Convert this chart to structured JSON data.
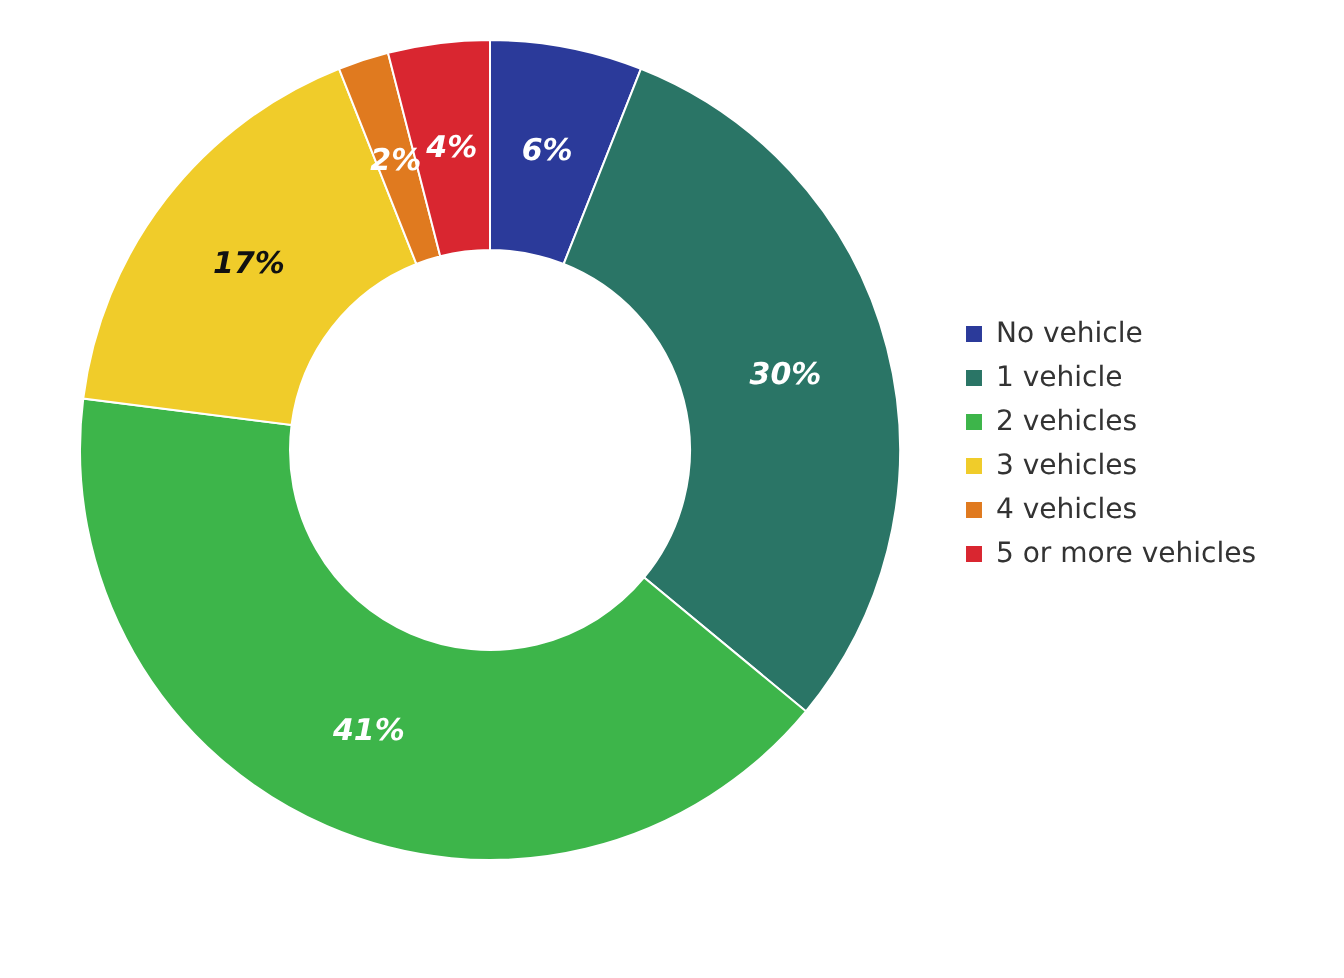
{
  "chart_data": {
    "type": "donut",
    "categories": [
      "No vehicle",
      "1 vehicle",
      "2 vehicles",
      "3 vehicles",
      "4 vehicles",
      "5 or more vehicles"
    ],
    "values": [
      6,
      30,
      41,
      17,
      2,
      4
    ],
    "colors": [
      "#2b3a9a",
      "#2a7566",
      "#3db54a",
      "#f0cc2a",
      "#e07a1f",
      "#d92630"
    ],
    "value_labels": [
      "6%",
      "30%",
      "41%",
      "17%",
      "2%",
      "4%"
    ],
    "legend": "right"
  }
}
